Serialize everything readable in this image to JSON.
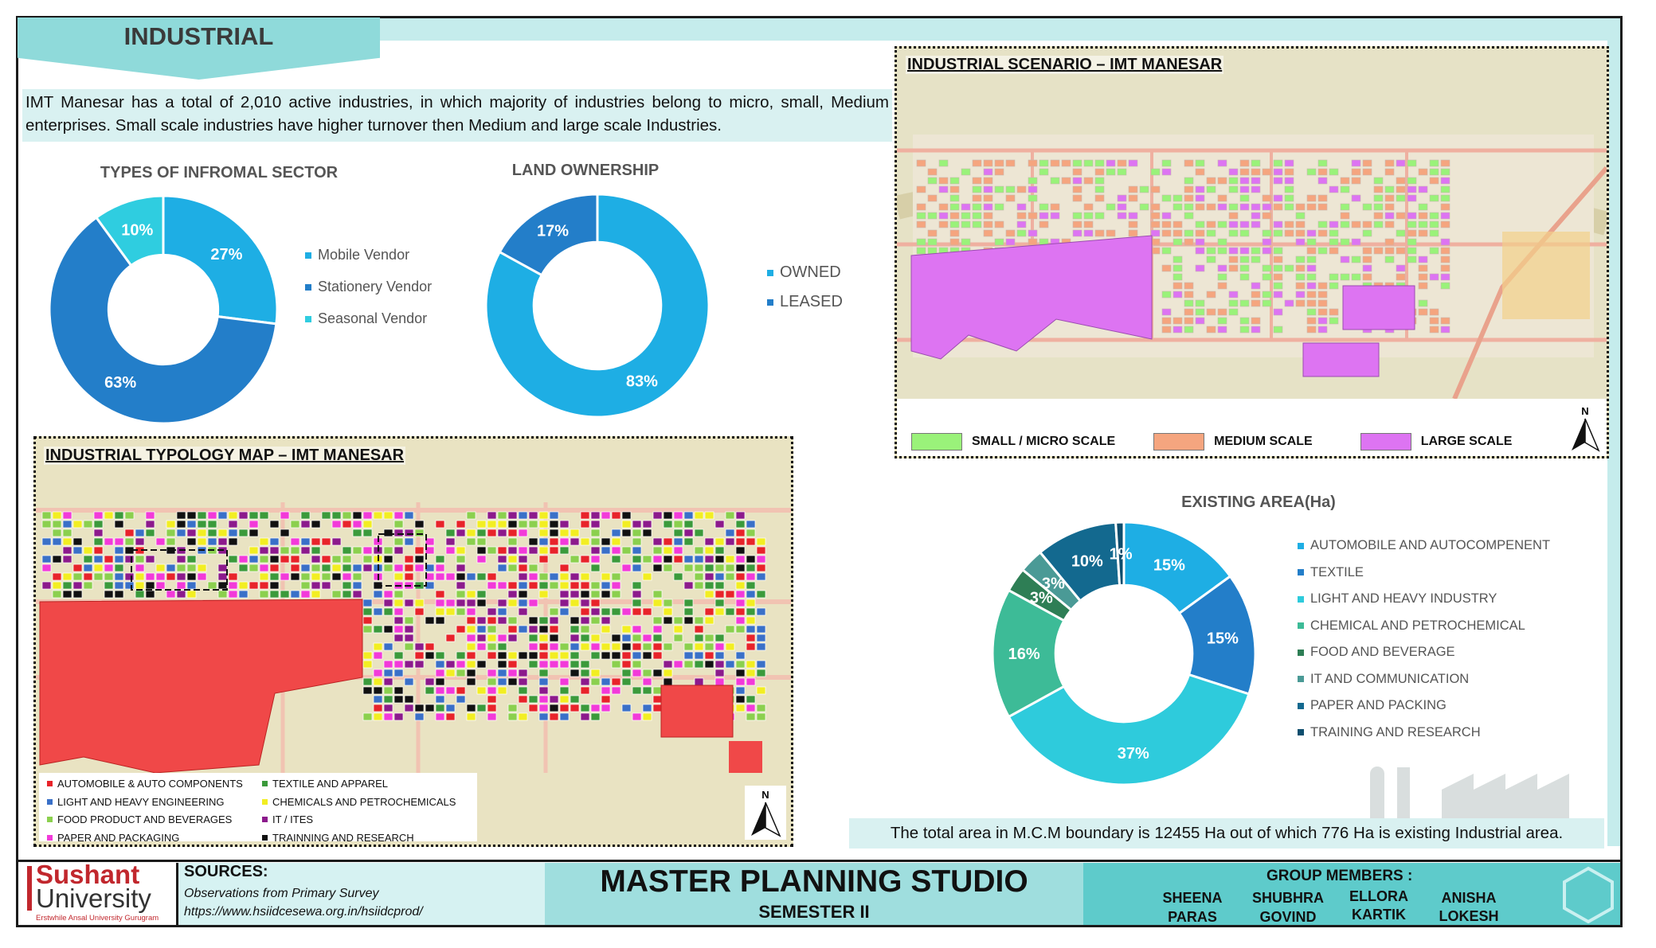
{
  "header": {
    "title": "INDUSTRIAL"
  },
  "intro": {
    "text": "IMT Manesar has a total of 2,010 active industries, in which majority of industries belong to micro, small, Medium enterprises. Small scale industries have higher turnover then Medium and large scale Industries."
  },
  "chart_data": [
    {
      "type": "pie",
      "title": "TYPES OF INFROMAL SECTOR",
      "categories": [
        "Mobile Vendor",
        "Stationery Vendor",
        "Seasonal Vendor"
      ],
      "values": [
        27,
        63,
        10
      ],
      "labels": [
        "27%",
        "63%",
        "10%"
      ],
      "colors": [
        "#1eaee4",
        "#237ec9",
        "#2fcde0"
      ],
      "legend_position": "right"
    },
    {
      "type": "pie",
      "title": "LAND OWNERSHIP",
      "categories": [
        "OWNED",
        "LEASED"
      ],
      "values": [
        83,
        17
      ],
      "labels": [
        "83%",
        "17%"
      ],
      "colors": [
        "#1eaee4",
        "#237ec9"
      ],
      "legend_position": "right"
    },
    {
      "type": "pie",
      "title": "EXISTING AREA(Ha)",
      "categories": [
        "AUTOMOBILE AND AUTOCOMPENENT",
        "TEXTILE",
        "LIGHT AND HEAVY INDUSTRY",
        "CHEMICAL AND PETROCHEMICAL",
        "FOOD AND BEVERAGE",
        "IT AND COMMUNICATION",
        "PAPER AND PACKING",
        "TRAINING AND RESEARCH"
      ],
      "values": [
        15,
        15,
        37,
        16,
        3,
        3,
        10,
        1
      ],
      "labels": [
        "15%",
        "15%",
        "37%",
        "16%",
        "3%",
        "3%",
        "10%",
        "1%"
      ],
      "colors": [
        "#1eaee4",
        "#237ec9",
        "#2ecbdc",
        "#3dbb97",
        "#2e7e55",
        "#4a9a96",
        "#13698f",
        "#0e4e6e"
      ],
      "legend_position": "right"
    }
  ],
  "scenario_map": {
    "title": "INDUSTRIAL SCENARIO – IMT MANESAR",
    "legend": [
      {
        "label": "SMALL / MICRO SCALE",
        "color": "#9af27a"
      },
      {
        "label": "MEDIUM SCALE",
        "color": "#f5a57f"
      },
      {
        "label": "LARGE SCALE",
        "color": "#dd74f2"
      }
    ],
    "north": "N"
  },
  "typology_map": {
    "title": "INDUSTRIAL TYPOLOGY MAP – IMT MANESAR",
    "legend": [
      {
        "label": "AUTOMOBILE & AUTO COMPONENTS",
        "color": "#e8232a"
      },
      {
        "label": "TEXTILE AND APPAREL",
        "color": "#3b9a3b"
      },
      {
        "label": "LIGHT AND HEAVY ENGINEERING",
        "color": "#3a70c8"
      },
      {
        "label": "CHEMICALS AND PETROCHEMICALS",
        "color": "#f2ee22"
      },
      {
        "label": "FOOD PRODUCT AND BEVERAGES",
        "color": "#8bd04e"
      },
      {
        "label": "IT / ITES",
        "color": "#8c1a8c"
      },
      {
        "label": "PAPER AND PACKAGING",
        "color": "#f23ad9"
      },
      {
        "label": "TRAINNING AND RESEARCH",
        "color": "#111111"
      }
    ],
    "north": "N"
  },
  "note": {
    "text": "The total area in M.C.M boundary is 12455 Ha out of which 776 Ha is existing Industrial area."
  },
  "footer": {
    "logo_line1": "Sushant",
    "logo_line2": "University",
    "logo_line3": "Erstwhile Ansal University Gurugram",
    "sources_title": "SOURCES:",
    "sources": [
      "Observations from Primary Survey",
      "https://www.hsiidcesewa.org.in/hsiidcprod/"
    ],
    "studio_title": "MASTER PLANNING STUDIO",
    "studio_sub": "SEMESTER II",
    "group_title": "GROUP MEMBERS :",
    "members": [
      "SHEENA",
      "SHUBHRA",
      "ELLORA",
      "ANISHA",
      "PARAS",
      "GOVIND",
      "KARTIK",
      "LOKESH"
    ]
  }
}
